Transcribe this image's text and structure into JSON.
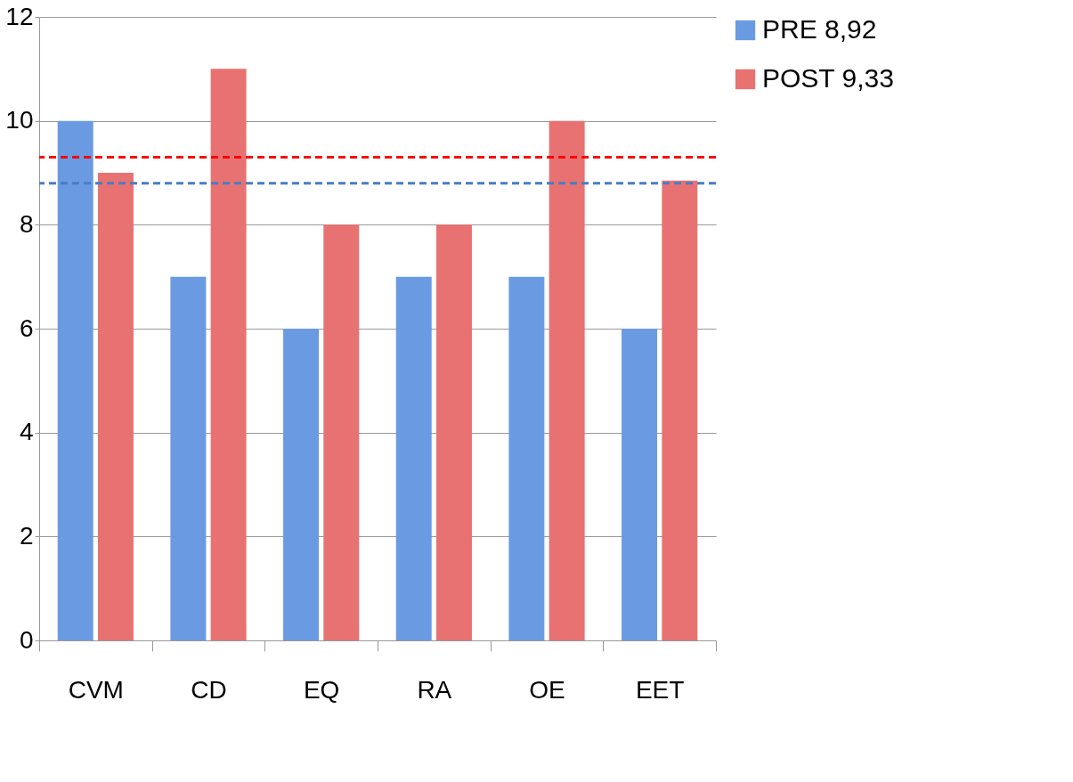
{
  "chart_data": {
    "type": "bar",
    "categories": [
      "CVM",
      "CD",
      "EQ",
      "RA",
      "OE",
      "EET"
    ],
    "series": [
      {
        "name": "PRE   8,92",
        "color": "#6a9be2",
        "values": [
          10,
          7,
          6,
          7,
          7,
          6
        ]
      },
      {
        "name": "POST 9,33",
        "color": "#e87272",
        "values": [
          9,
          11,
          8,
          8,
          10,
          8.85
        ]
      }
    ],
    "ylim": [
      0,
      12
    ],
    "yticks": [
      0,
      2,
      4,
      6,
      8,
      10,
      12
    ],
    "grid": "y",
    "legend": "right",
    "ref_lines": [
      {
        "axis": "y",
        "value": 9.3,
        "color": "#ff0000",
        "line_style": "dashed"
      },
      {
        "axis": "y",
        "value": 8.8,
        "color": "#4a7cc4",
        "line_style": "dashed"
      }
    ]
  }
}
